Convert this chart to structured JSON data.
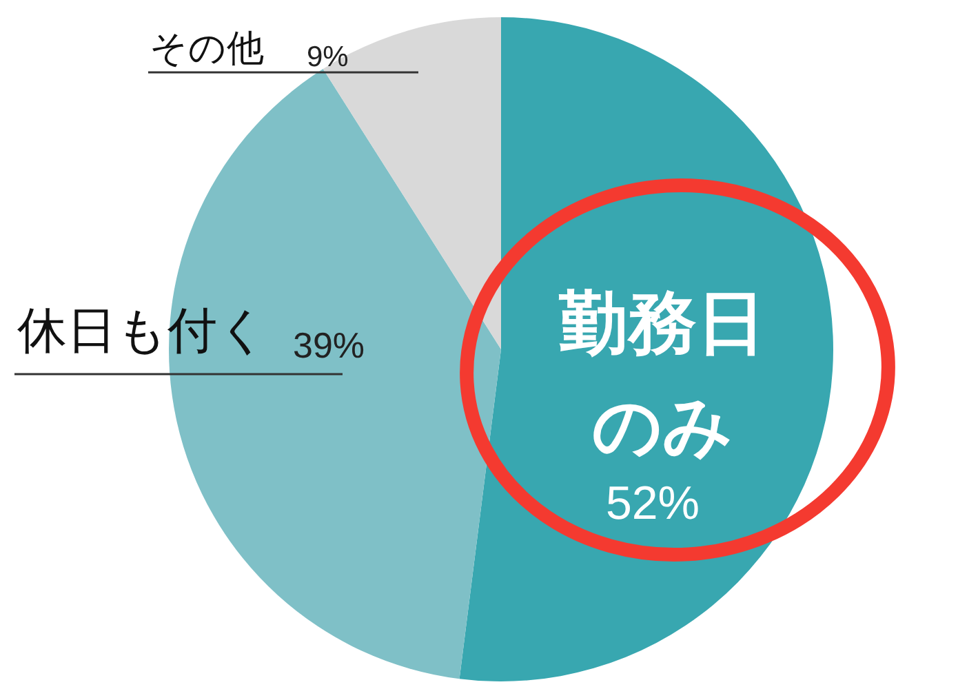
{
  "chart_data": {
    "type": "pie",
    "categories": [
      "勤務日のみ",
      "休日も付く",
      "その他"
    ],
    "values": [
      52,
      39,
      9
    ],
    "colors": [
      "#38a7b0",
      "#7fc0c7",
      "#d9d9d9"
    ],
    "value_labels": [
      "52%",
      "39%",
      "9%"
    ]
  }
}
